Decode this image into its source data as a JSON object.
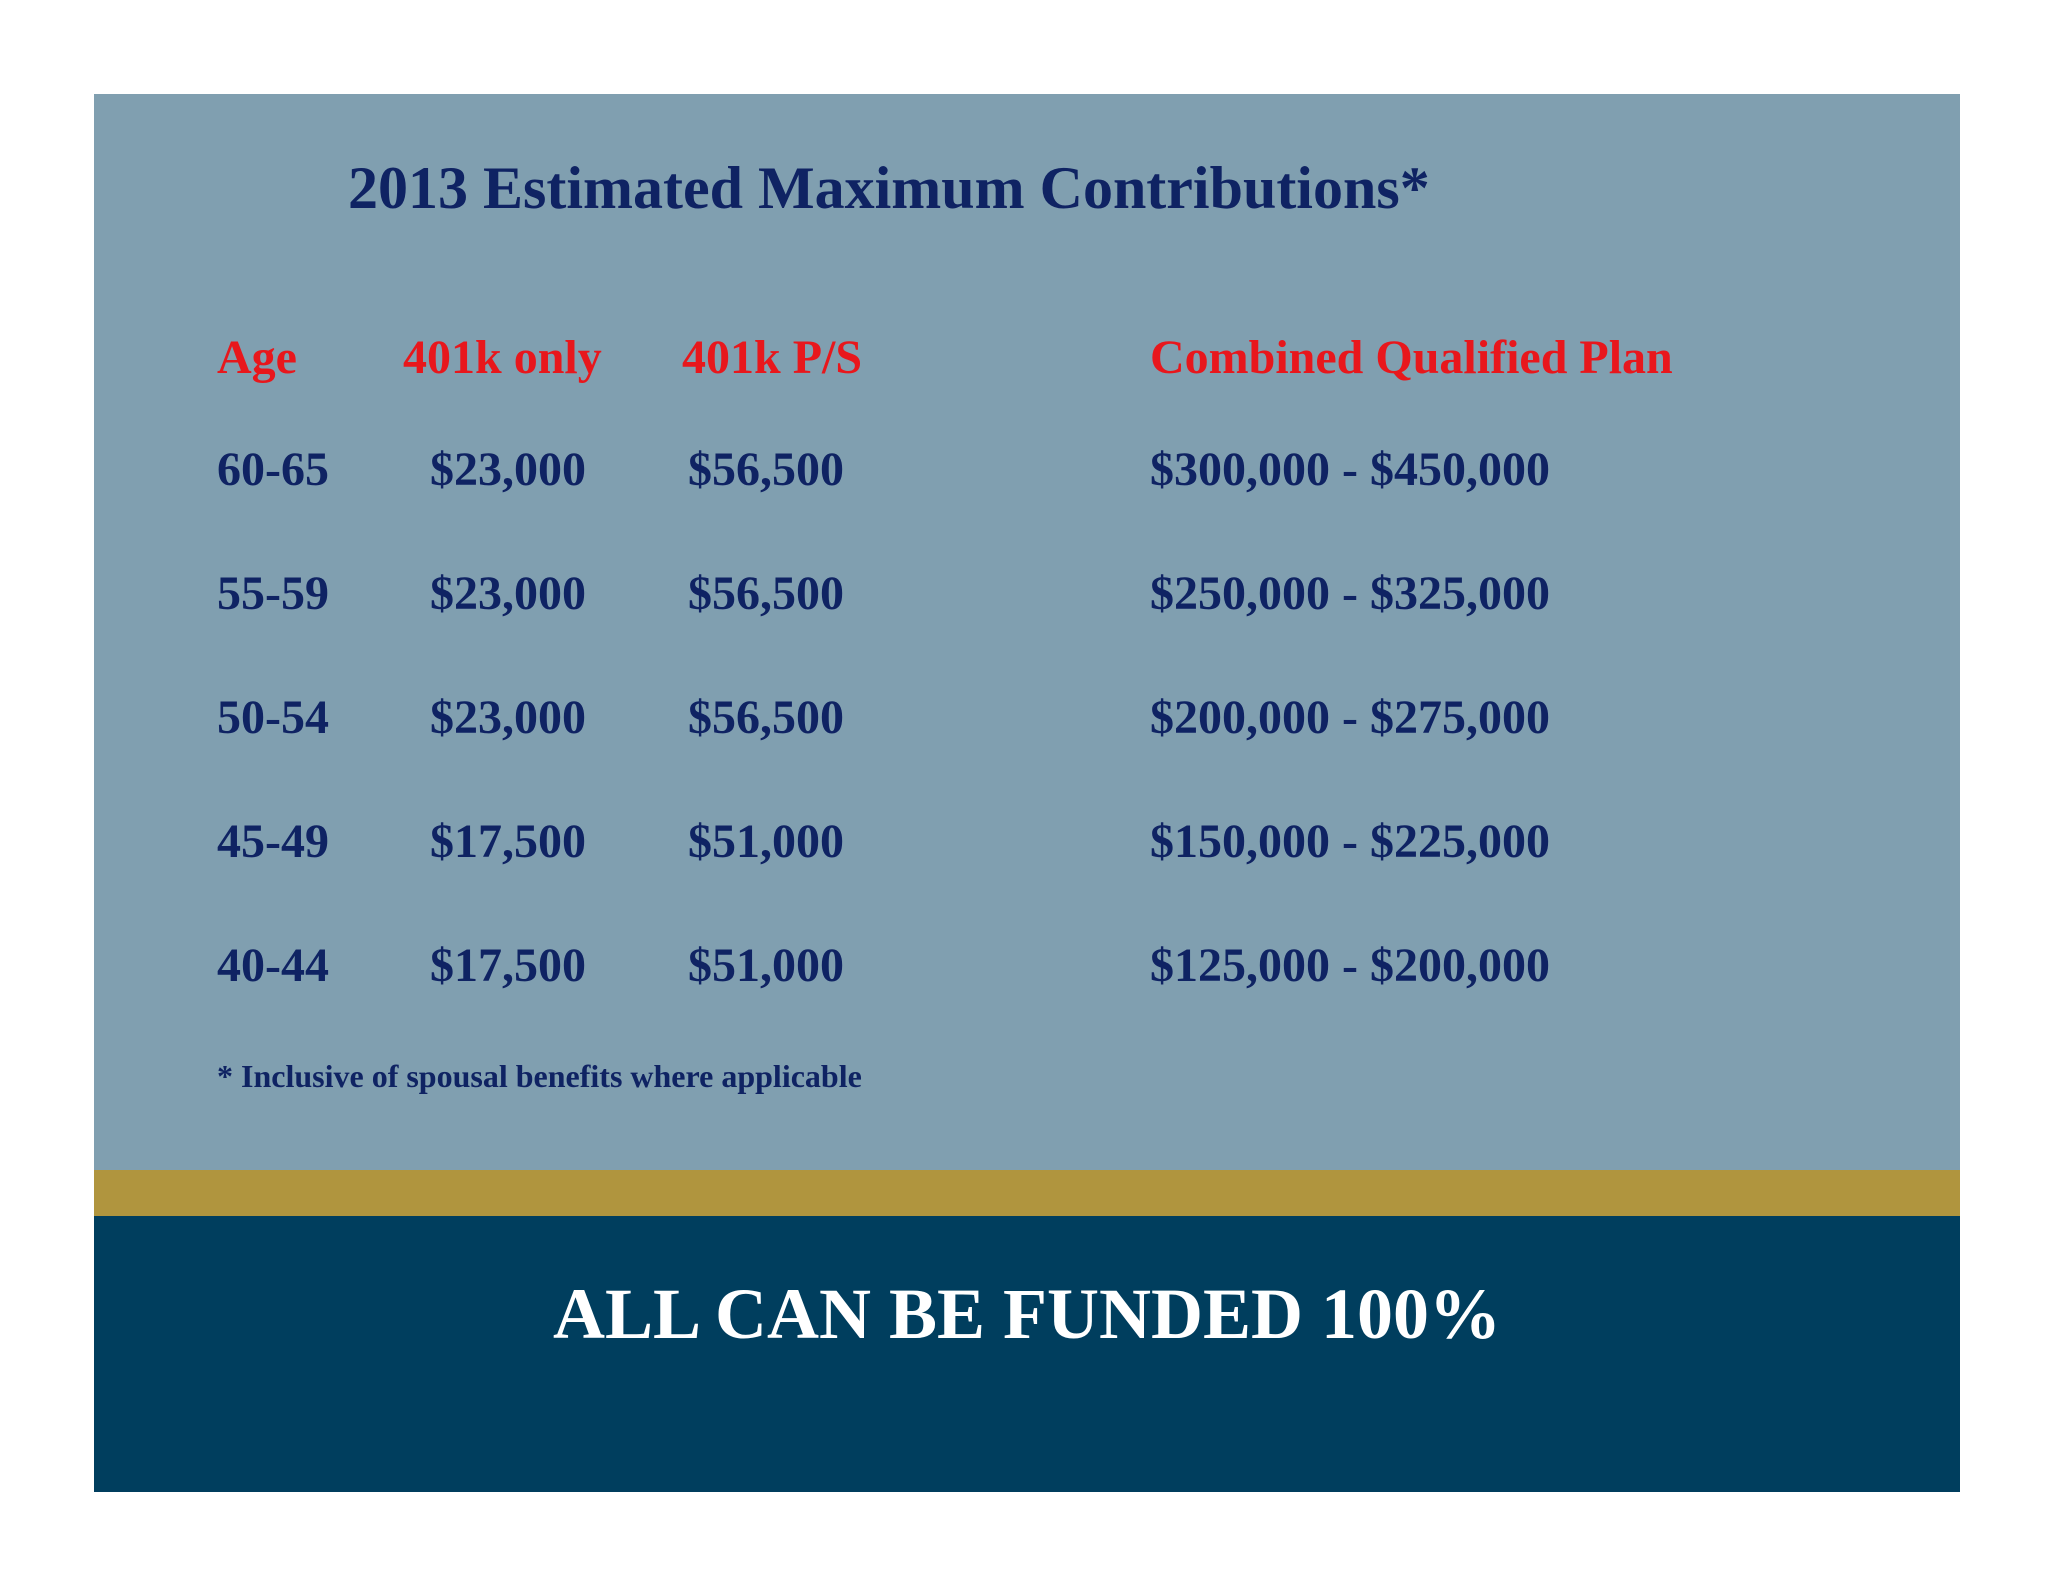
{
  "title": "2013 Estimated Maximum Contributions*",
  "table": {
    "headers": [
      "Age",
      "401k only",
      "401k P/S",
      "Combined Qualified Plan"
    ],
    "rows": [
      [
        "60-65",
        "$23,000",
        "$56,500",
        "$300,000 - $450,000"
      ],
      [
        "55-59",
        "$23,000",
        "$56,500",
        "$250,000 - $325,000"
      ],
      [
        "50-54",
        "$23,000",
        "$56,500",
        "$200,000 - $275,000"
      ],
      [
        "45-49",
        "$17,500",
        "$51,000",
        "$150,000 - $225,000"
      ],
      [
        "40-44",
        "$17,500",
        "$51,000",
        "$125,000 - $200,000"
      ]
    ]
  },
  "footnote": "* Inclusive of spousal benefits where applicable",
  "banner": "ALL CAN BE FUNDED 100%",
  "colors": {
    "panel": "#809fb0",
    "gold_bar": "#b0953e",
    "banner_bg": "#003e5e",
    "header_text": "#e8171c",
    "value_text": "#0f2363",
    "banner_text": "#ffffff"
  }
}
